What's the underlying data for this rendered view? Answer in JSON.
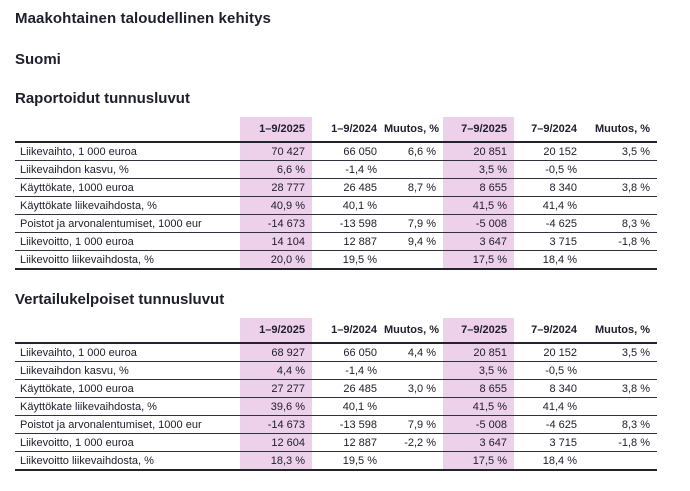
{
  "page": {
    "title": "Maakohtainen taloudellinen kehitys",
    "subtitle": "Suomi"
  },
  "colors": {
    "highlight_column": "#edd0ea",
    "text": "#20202c",
    "heavy_rule": "#23232e",
    "light_rule": "#32323c"
  },
  "columns": [
    "1–9/2025",
    "1–9/2024",
    "Muutos, %",
    "7–9/2025",
    "7–9/2024",
    "Muutos, %"
  ],
  "highlighted_columns": [
    "1–9/2025",
    "7–9/2025"
  ],
  "sections": [
    {
      "title": "Raportoidut tunnusluvut",
      "rows": [
        {
          "label": "Liikevaihto, 1 000 euroa",
          "values": [
            "70 427",
            "66 050",
            "6,6 %",
            "20 851",
            "20 152",
            "3,5 %"
          ]
        },
        {
          "label": "Liikevaihdon kasvu, %",
          "values": [
            "6,6 %",
            "-1,4 %",
            "",
            "3,5 %",
            "-0,5 %",
            ""
          ]
        },
        {
          "label": "Käyttökate, 1000 euroa",
          "values": [
            "28 777",
            "26 485",
            "8,7 %",
            "8 655",
            "8 340",
            "3,8 %"
          ]
        },
        {
          "label": "Käyttökate liikevaihdosta, %",
          "values": [
            "40,9 %",
            "40,1 %",
            "",
            "41,5 %",
            "41,4 %",
            ""
          ]
        },
        {
          "label": "Poistot ja arvonalentumiset, 1000 eur",
          "values": [
            "-14 673",
            "-13 598",
            "7,9 %",
            "-5 008",
            "-4 625",
            "8,3 %"
          ]
        },
        {
          "label": "Liikevoitto, 1 000 euroa",
          "values": [
            "14 104",
            "12 887",
            "9,4 %",
            "3 647",
            "3 715",
            "-1,8 %"
          ]
        },
        {
          "label": "Liikevoitto liikevaihdosta, %",
          "values": [
            "20,0 %",
            "19,5 %",
            "",
            "17,5 %",
            "18,4 %",
            ""
          ]
        }
      ]
    },
    {
      "title": "Vertailukelpoiset tunnusluvut",
      "rows": [
        {
          "label": "Liikevaihto, 1 000 euroa",
          "values": [
            "68 927",
            "66 050",
            "4,4 %",
            "20 851",
            "20 152",
            "3,5 %"
          ]
        },
        {
          "label": "Liikevaihdon kasvu, %",
          "values": [
            "4,4 %",
            "-1,4 %",
            "",
            "3,5 %",
            "-0,5 %",
            ""
          ]
        },
        {
          "label": "Käyttökate, 1000 euroa",
          "values": [
            "27 277",
            "26 485",
            "3,0 %",
            "8 655",
            "8 340",
            "3,8 %"
          ]
        },
        {
          "label": "Käyttökate liikevaihdosta, %",
          "values": [
            "39,6 %",
            "40,1 %",
            "",
            "41,5 %",
            "41,4 %",
            ""
          ]
        },
        {
          "label": "Poistot ja arvonalentumiset, 1000 eur",
          "values": [
            "-14 673",
            "-13 598",
            "7,9 %",
            "-5 008",
            "-4 625",
            "8,3 %"
          ]
        },
        {
          "label": "Liikevoitto, 1 000 euroa",
          "values": [
            "12 604",
            "12 887",
            "-2,2 %",
            "3 647",
            "3 715",
            "-1,8 %"
          ]
        },
        {
          "label": "Liikevoitto liikevaihdosta, %",
          "values": [
            "18,3 %",
            "19,5 %",
            "",
            "17,5 %",
            "18,4 %",
            ""
          ]
        }
      ]
    }
  ]
}
